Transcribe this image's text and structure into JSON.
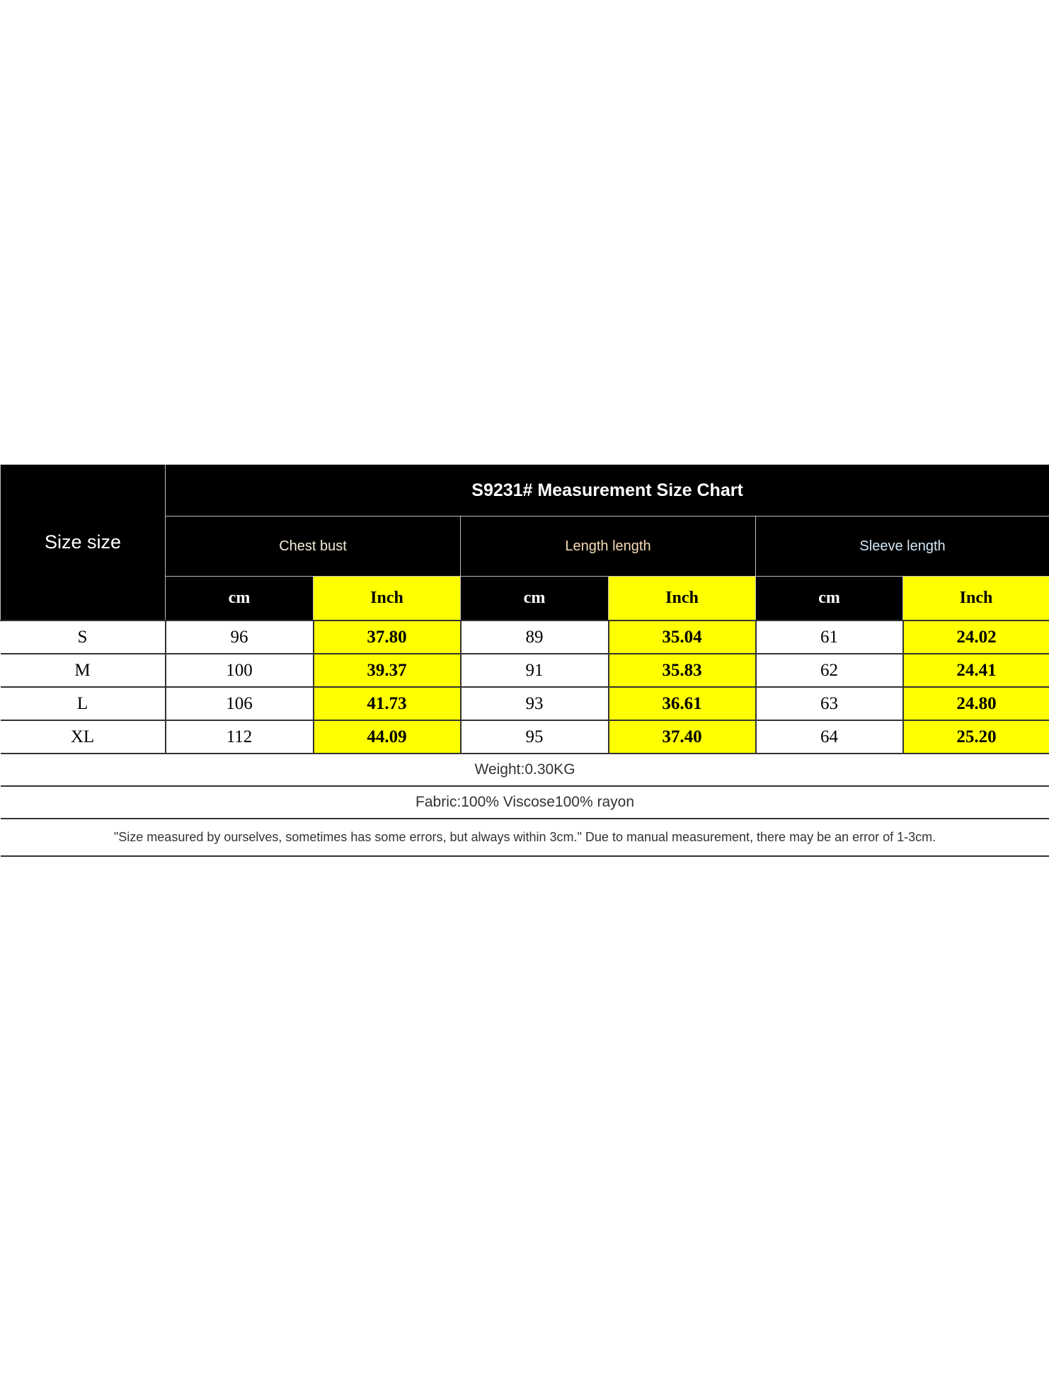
{
  "header": {
    "size_label": "Size size",
    "title": "S9231# Measurement Size Chart",
    "groups": [
      "Chest bust",
      "Length length",
      "Sleeve length"
    ],
    "units": [
      "cm",
      "Inch",
      "cm",
      "Inch",
      "cm",
      "Inch"
    ]
  },
  "rows": [
    {
      "size": "S",
      "values": [
        "96",
        "37.80",
        "89",
        "35.04",
        "61",
        "24.02"
      ]
    },
    {
      "size": "M",
      "values": [
        "100",
        "39.37",
        "91",
        "35.83",
        "62",
        "24.41"
      ]
    },
    {
      "size": "L",
      "values": [
        "106",
        "41.73",
        "93",
        "36.61",
        "63",
        "24.80"
      ]
    },
    {
      "size": "XL",
      "values": [
        "112",
        "44.09",
        "95",
        "37.40",
        "64",
        "25.20"
      ]
    }
  ],
  "footer": {
    "weight": "Weight:0.30KG",
    "fabric": "Fabric:100% Viscose100% rayon",
    "note": "\"Size measured by ourselves, sometimes has some errors, but always within 3cm.\" Due to manual measurement, there may be an error of 1-3cm."
  },
  "colors": {
    "header_bg": "#000000",
    "inch_highlight": "#ffff00"
  }
}
